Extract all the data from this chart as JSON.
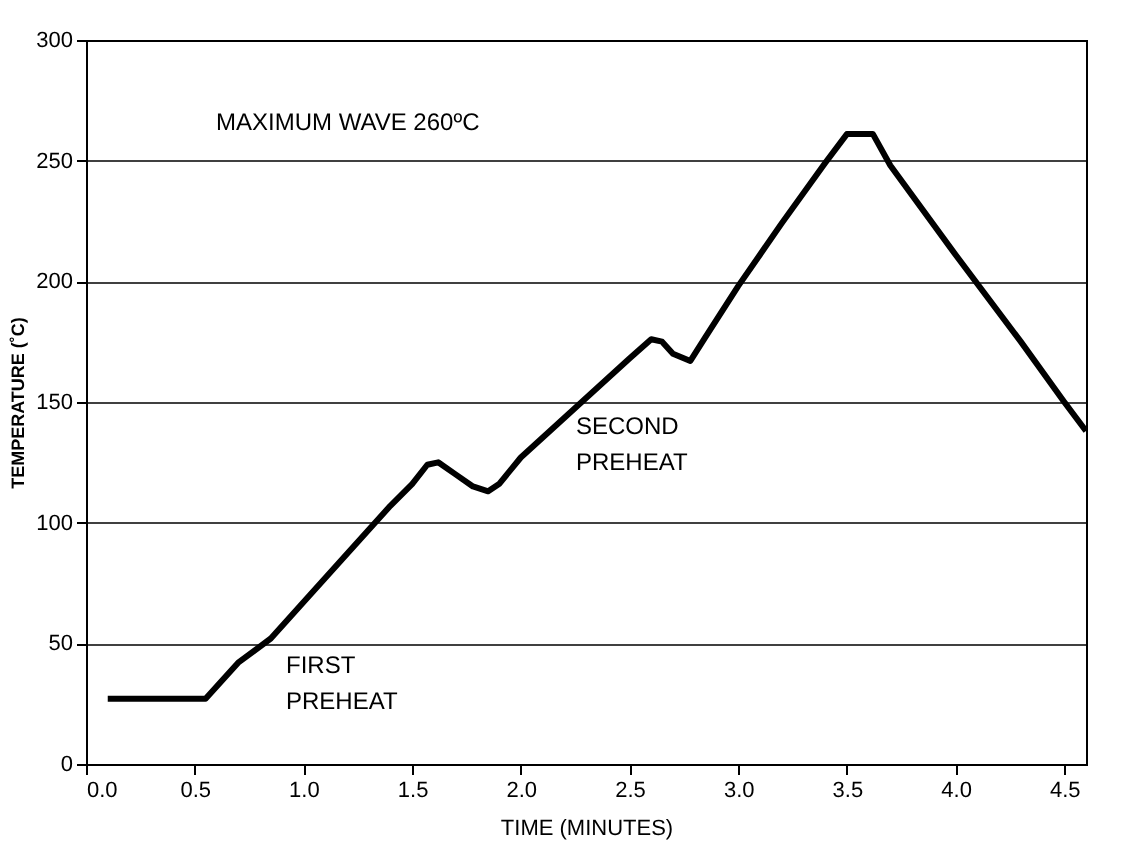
{
  "chart_data": {
    "type": "line",
    "xlabel": "TIME (MINUTES)",
    "ylabel": "TEMPERATURE (˚C)",
    "x": [
      0.1,
      0.55,
      0.6,
      0.7,
      0.85,
      1.0,
      1.2,
      1.4,
      1.5,
      1.57,
      1.62,
      1.7,
      1.78,
      1.85,
      1.9,
      2.0,
      2.5,
      2.6,
      2.65,
      2.7,
      2.78,
      2.85,
      3.0,
      3.2,
      3.4,
      3.5,
      3.62,
      3.7,
      4.0,
      4.3,
      4.5,
      4.6
    ],
    "series": [
      {
        "color": "#000000",
        "values": [
          27,
          27,
          32,
          42,
          52,
          67,
          87,
          107,
          116,
          124,
          125,
          120,
          115,
          113,
          116,
          127,
          168,
          176,
          175,
          170,
          167,
          177,
          198,
          224,
          249,
          261,
          261,
          248,
          211,
          175,
          150,
          138
        ]
      }
    ],
    "xlim": [
      0,
      4.6
    ],
    "xticks": [
      {
        "value": 0,
        "label": "0.0"
      },
      {
        "value": 0.5,
        "label": "0.5"
      },
      {
        "value": 1,
        "label": "1.0"
      },
      {
        "value": 1.5,
        "label": "1.5"
      },
      {
        "value": 2,
        "label": "2.0"
      },
      {
        "value": 2.5,
        "label": "2.5"
      },
      {
        "value": 3,
        "label": "3.0"
      },
      {
        "value": 3.5,
        "label": "3.5"
      },
      {
        "value": 4,
        "label": "4.0"
      },
      {
        "value": 4.5,
        "label": "4.5"
      }
    ],
    "ylim": [
      0,
      300
    ],
    "yticks": [
      0,
      50,
      100,
      150,
      200,
      250,
      300
    ],
    "grid": "y",
    "marker": "none",
    "line_style": "solid",
    "annotations": [
      "MAXIMUM WAVE 260ºC",
      "FIRST\nPREHEAT",
      "SECOND\nPREHEAT"
    ]
  }
}
